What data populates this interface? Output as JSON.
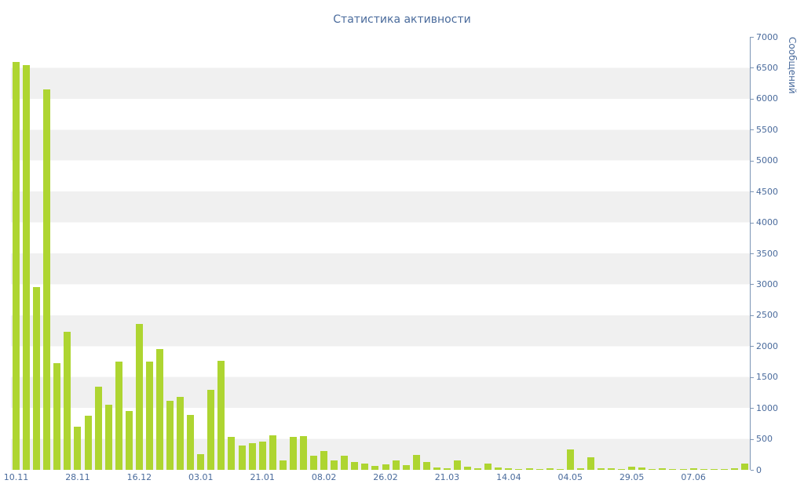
{
  "chart_data": {
    "type": "bar",
    "title": "Статистика активности",
    "ylabel": "Сообщений",
    "xlabel": "",
    "ylim": [
      0,
      7000
    ],
    "y_tick_step": 500,
    "y_ticks": [
      0,
      500,
      1000,
      1500,
      2000,
      2500,
      3000,
      3500,
      4000,
      4500,
      5000,
      5500,
      6000,
      6500,
      7000
    ],
    "x_tick_labels": [
      "10.11",
      "28.11",
      "16.12",
      "03.01",
      "21.01",
      "08.02",
      "26.02",
      "21.03",
      "14.04",
      "04.05",
      "29.05",
      "07.06"
    ],
    "x_tick_slots": [
      0,
      6,
      12,
      18,
      24,
      30,
      36,
      42,
      48,
      54,
      60,
      66
    ],
    "values": [
      6600,
      6550,
      2950,
      6150,
      1720,
      2230,
      700,
      880,
      1340,
      1050,
      1750,
      950,
      2360,
      1750,
      1950,
      1120,
      1180,
      890,
      250,
      1290,
      1760,
      530,
      390,
      430,
      460,
      560,
      150,
      530,
      540,
      230,
      300,
      150,
      230,
      130,
      100,
      60,
      90,
      150,
      80,
      240,
      130,
      40,
      25,
      150,
      50,
      25,
      100,
      40,
      30,
      15,
      25,
      15,
      20,
      10,
      330,
      25,
      200,
      20,
      20,
      15,
      50,
      40,
      15,
      20,
      10,
      15,
      20,
      10,
      15,
      10,
      25,
      100
    ],
    "grid": "horizontal-bands",
    "legend": "none",
    "axis_position": "right",
    "colors": {
      "bar": "#aed531",
      "text": "#4a6b9c",
      "band": "#f0f0f0",
      "axis": "#7d95b5"
    }
  }
}
